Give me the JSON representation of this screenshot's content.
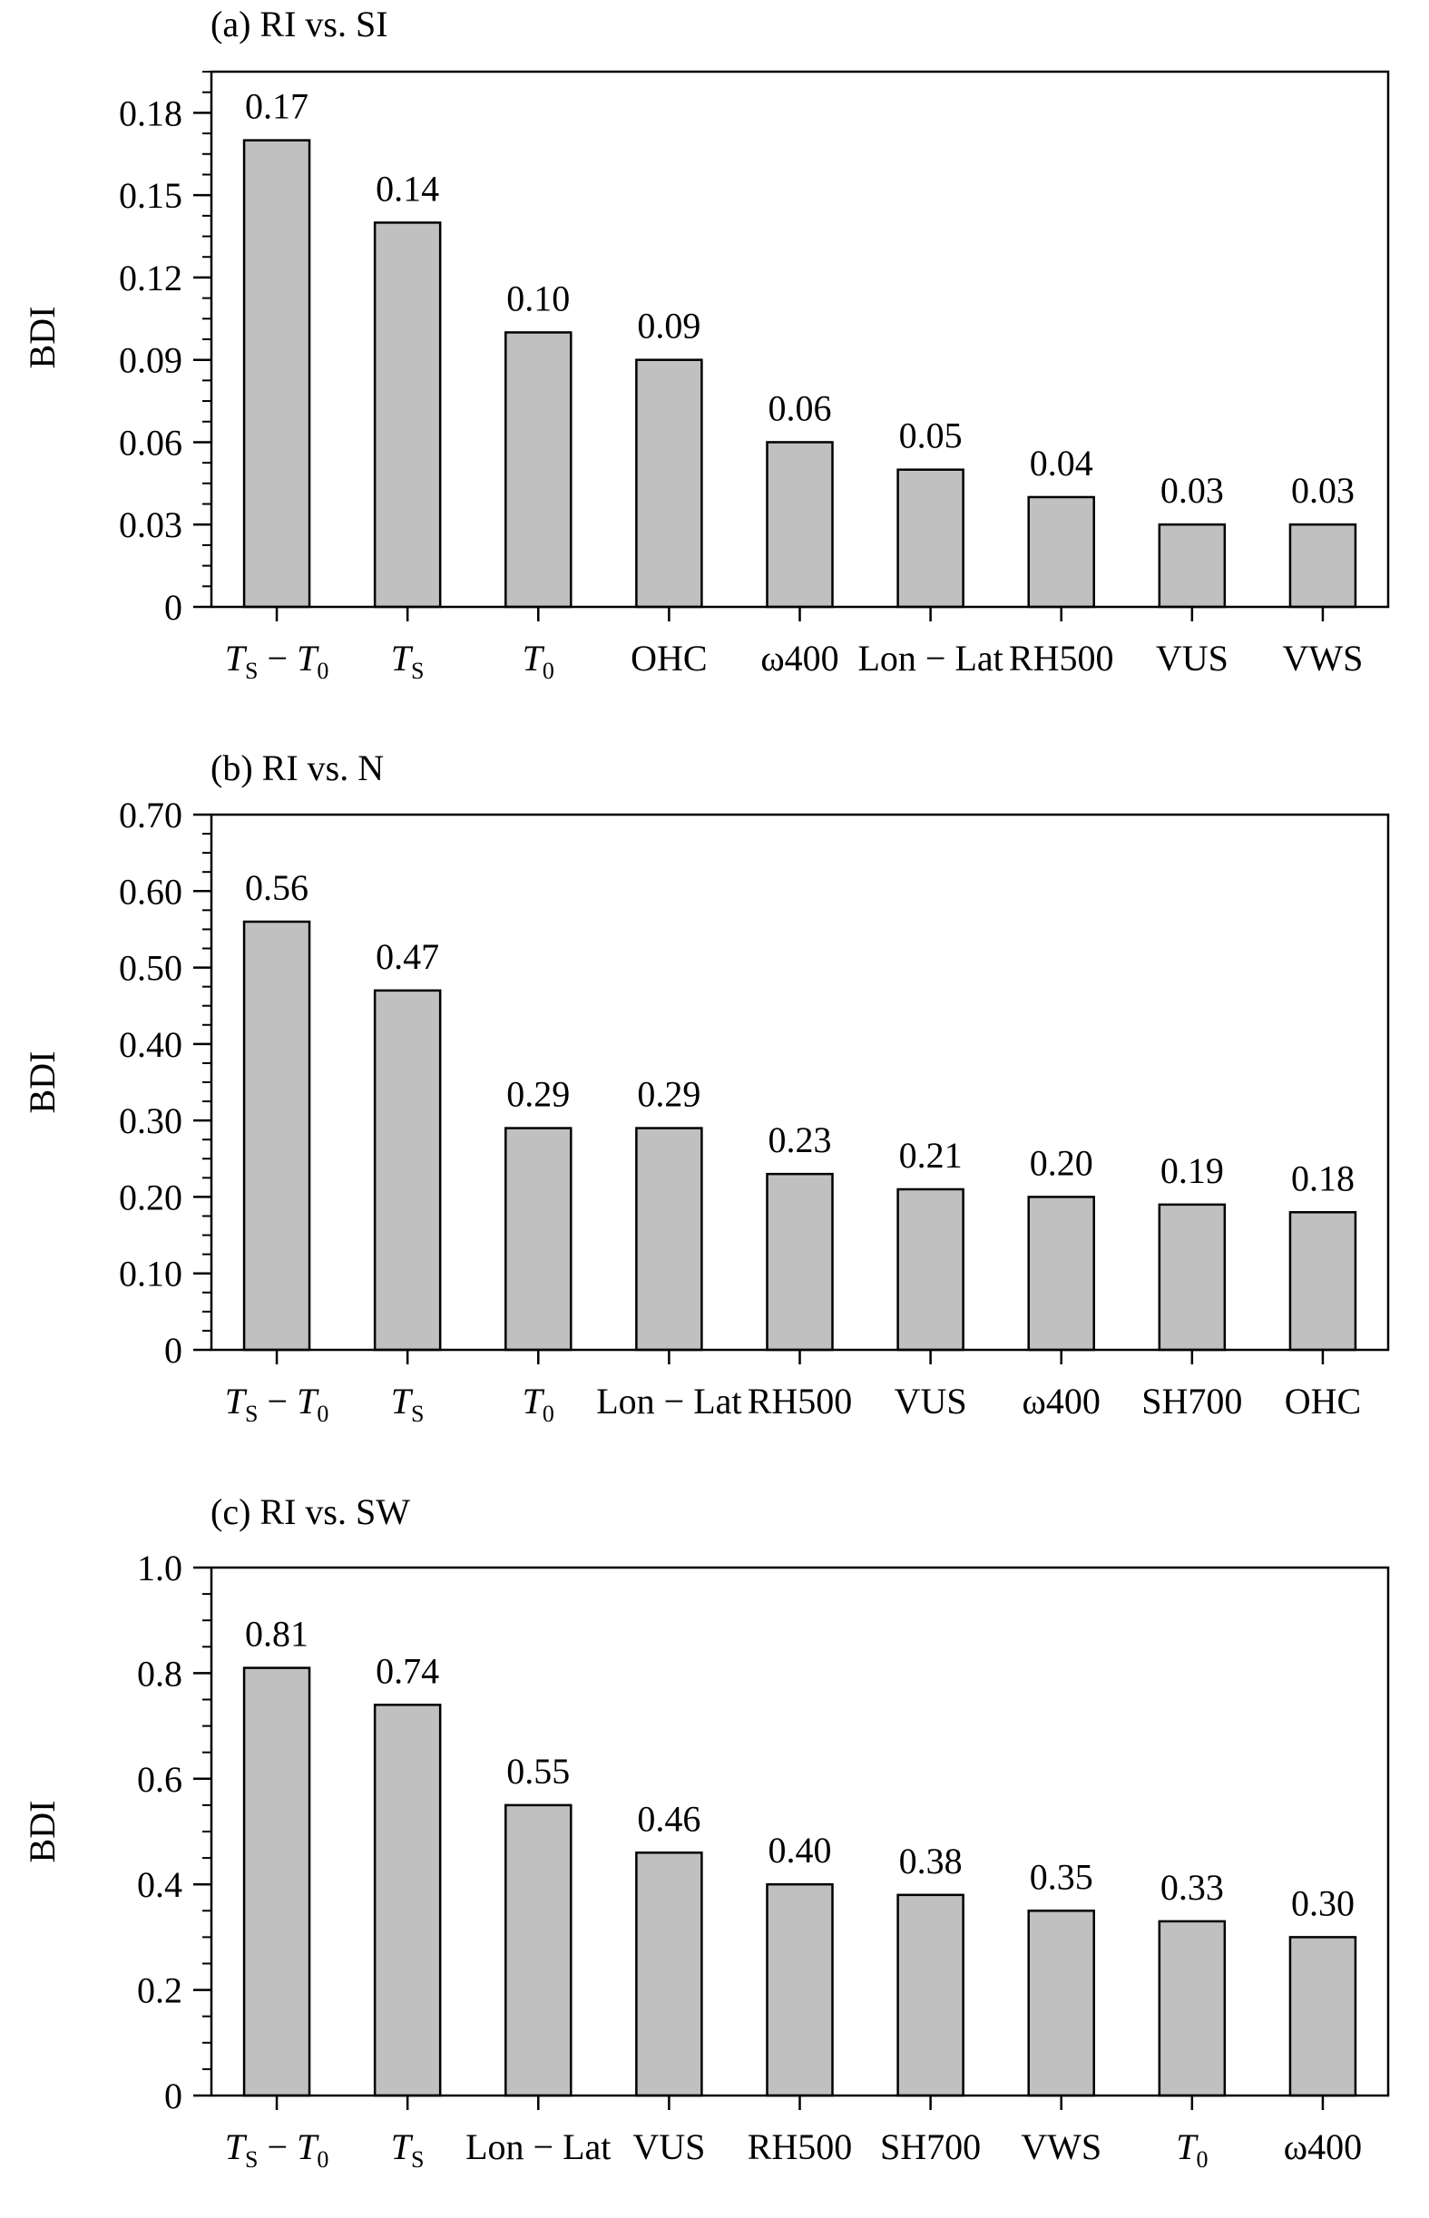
{
  "chart_data": [
    {
      "type": "bar",
      "title": "(a) RI vs. SI",
      "ylabel": "BDI",
      "ylim": [
        0,
        0.195
      ],
      "yticks": [
        0,
        0.03,
        0.06,
        0.09,
        0.12,
        0.15,
        0.18
      ],
      "ytick_labels": [
        "0",
        "0.03",
        "0.06",
        "0.09",
        "0.12",
        "0.15",
        "0.18"
      ],
      "categories": [
        {
          "main": "T",
          "sub": "S",
          "mid": " − ",
          "main2": "T",
          "sub2": "0",
          "italic": true
        },
        {
          "main": "T",
          "sub": "S",
          "italic": true
        },
        {
          "main": "T",
          "sub": "0",
          "italic": true
        },
        {
          "main": "OHC"
        },
        {
          "main": "ω400"
        },
        {
          "main": "Lon − Lat"
        },
        {
          "main": "RH500"
        },
        {
          "main": "VUS"
        },
        {
          "main": "VWS"
        }
      ],
      "values": [
        0.17,
        0.14,
        0.1,
        0.09,
        0.06,
        0.05,
        0.04,
        0.03,
        0.03
      ],
      "value_labels": [
        "0.17",
        "0.14",
        "0.10",
        "0.09",
        "0.06",
        "0.05",
        "0.04",
        "0.03",
        "0.03"
      ],
      "grid": false,
      "bar_color": "#c0c0c0"
    },
    {
      "type": "bar",
      "title": "(b) RI vs. N",
      "ylabel": "BDI",
      "ylim": [
        0,
        0.7
      ],
      "yticks": [
        0,
        0.1,
        0.2,
        0.3,
        0.4,
        0.5,
        0.6,
        0.7
      ],
      "ytick_labels": [
        "0",
        "0.10",
        "0.20",
        "0.30",
        "0.40",
        "0.50",
        "0.60",
        "0.70"
      ],
      "categories": [
        {
          "main": "T",
          "sub": "S",
          "mid": " − ",
          "main2": "T",
          "sub2": "0",
          "italic": true
        },
        {
          "main": "T",
          "sub": "S",
          "italic": true
        },
        {
          "main": "T",
          "sub": "0",
          "italic": true
        },
        {
          "main": "Lon − Lat"
        },
        {
          "main": "RH500"
        },
        {
          "main": "VUS"
        },
        {
          "main": "ω400"
        },
        {
          "main": "SH700"
        },
        {
          "main": "OHC"
        }
      ],
      "values": [
        0.56,
        0.47,
        0.29,
        0.29,
        0.23,
        0.21,
        0.2,
        0.19,
        0.18
      ],
      "value_labels": [
        "0.56",
        "0.47",
        "0.29",
        "0.29",
        "0.23",
        "0.21",
        "0.20",
        "0.19",
        "0.18"
      ],
      "grid": false,
      "bar_color": "#c0c0c0"
    },
    {
      "type": "bar",
      "title": "(c) RI vs. SW",
      "ylabel": "BDI",
      "ylim": [
        0,
        1.0
      ],
      "yticks": [
        0,
        0.2,
        0.4,
        0.6,
        0.8,
        1.0
      ],
      "ytick_labels": [
        "0",
        "0.2",
        "0.4",
        "0.6",
        "0.8",
        "1.0"
      ],
      "categories": [
        {
          "main": "T",
          "sub": "S",
          "mid": " − ",
          "main2": "T",
          "sub2": "0",
          "italic": true
        },
        {
          "main": "T",
          "sub": "S",
          "italic": true
        },
        {
          "main": "Lon − Lat"
        },
        {
          "main": "VUS"
        },
        {
          "main": "RH500"
        },
        {
          "main": "SH700"
        },
        {
          "main": "VWS"
        },
        {
          "main": "T",
          "sub": "0",
          "italic": true
        },
        {
          "main": "ω400"
        }
      ],
      "values": [
        0.81,
        0.74,
        0.55,
        0.46,
        0.4,
        0.38,
        0.35,
        0.33,
        0.3
      ],
      "value_labels": [
        "0.81",
        "0.74",
        "0.55",
        "0.46",
        "0.40",
        "0.38",
        "0.35",
        "0.33",
        "0.30"
      ],
      "grid": false,
      "bar_color": "#c0c0c0"
    }
  ]
}
